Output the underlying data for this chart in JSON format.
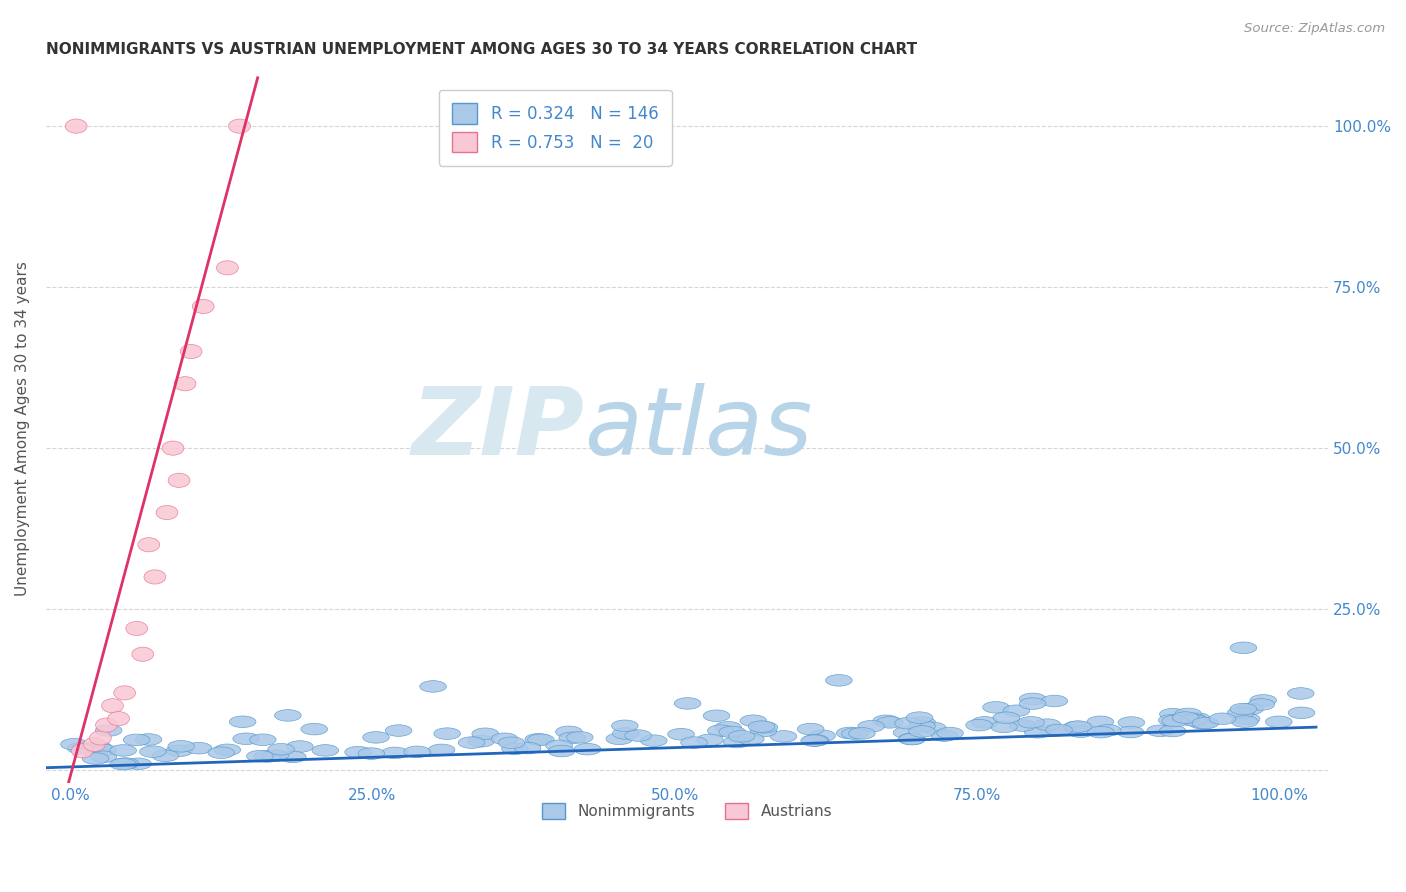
{
  "title": "NONIMMIGRANTS VS AUSTRIAN UNEMPLOYMENT AMONG AGES 30 TO 34 YEARS CORRELATION CHART",
  "source": "Source: ZipAtlas.com",
  "ylabel": "Unemployment Among Ages 30 to 34 years",
  "x_tick_labels": [
    "0.0%",
    "25.0%",
    "50.0%",
    "75.0%",
    "100.0%"
  ],
  "x_tick_values": [
    0,
    0.25,
    0.5,
    0.75,
    1.0
  ],
  "y_tick_labels_left": [
    "",
    "",
    "",
    "",
    ""
  ],
  "y_tick_labels_right": [
    "",
    "25.0%",
    "50.0%",
    "75.0%",
    "100.0%"
  ],
  "y_tick_values": [
    0,
    0.25,
    0.5,
    0.75,
    1.0
  ],
  "xlim": [
    -0.02,
    1.04
  ],
  "ylim": [
    -0.02,
    1.08
  ],
  "legend_labels": [
    "Nonimmigrants",
    "Austrians"
  ],
  "legend_r": [
    0.324,
    0.753
  ],
  "legend_n": [
    146,
    20
  ],
  "blue_scatter_color": "#aac8e8",
  "blue_edge_color": "#5599cc",
  "pink_scatter_color": "#f8c8d4",
  "pink_edge_color": "#e87090",
  "blue_line_color": "#2266bb",
  "pink_line_color": "#dd3366",
  "title_color": "#333333",
  "source_color": "#999999",
  "label_color": "#4488cc",
  "grid_color": "#cccccc",
  "background_color": "#ffffff",
  "seed": 42,
  "n_blue": 146,
  "n_pink": 20,
  "blue_slope": 0.06,
  "blue_intercept": 0.005,
  "figsize": [
    14.06,
    8.92
  ],
  "dpi": 100
}
